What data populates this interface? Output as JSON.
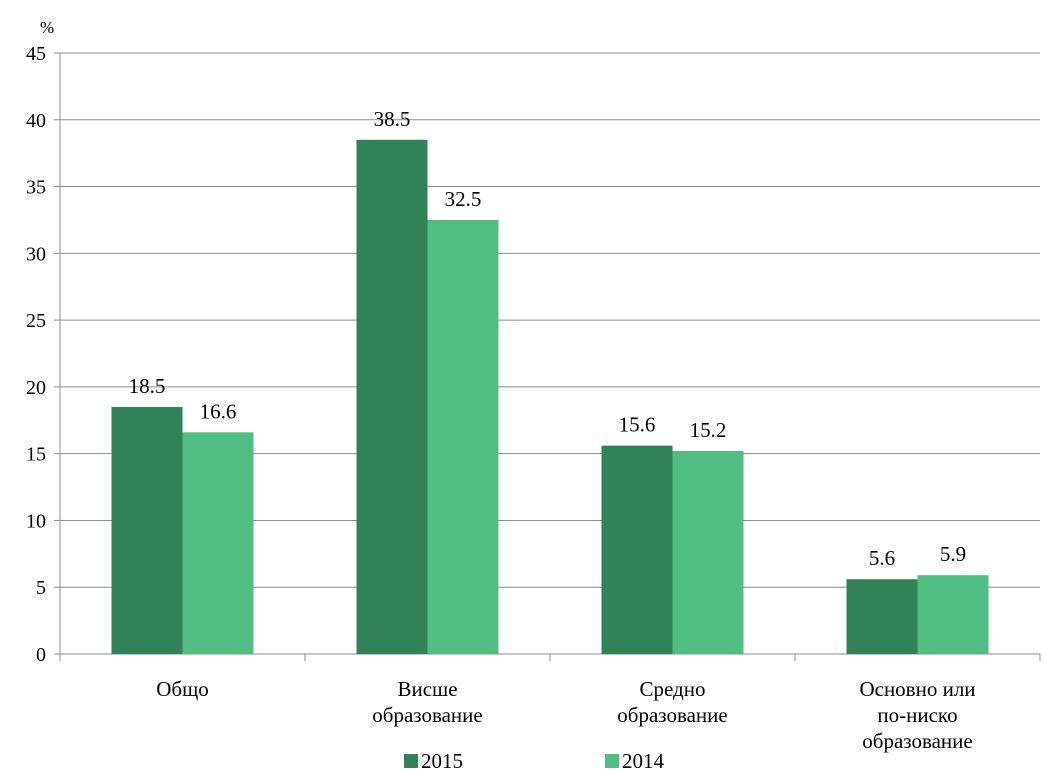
{
  "chart_data": {
    "type": "bar",
    "ylabel": "%",
    "ylim": [
      0,
      45
    ],
    "yticks": [
      0,
      5,
      10,
      15,
      20,
      25,
      30,
      35,
      40,
      45
    ],
    "grid": true,
    "legend_position": "bottom",
    "categories": [
      [
        "Общо"
      ],
      [
        "Висше",
        "образование"
      ],
      [
        "Средно",
        "образование"
      ],
      [
        "Основно или",
        "по-ниско",
        "образование"
      ]
    ],
    "series": [
      {
        "name": "2015",
        "color": "#318257",
        "values": [
          18.5,
          38.5,
          15.6,
          5.6
        ]
      },
      {
        "name": "2014",
        "color": "#50bd83",
        "values": [
          16.6,
          32.5,
          15.2,
          5.9
        ]
      }
    ]
  }
}
